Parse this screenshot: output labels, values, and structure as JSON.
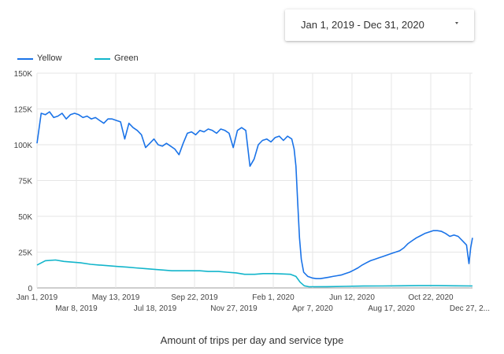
{
  "date_range": {
    "label": "Jan 1, 2019 - Dec 31, 2020",
    "dropdown_icon": "caret-down-icon"
  },
  "caption": "Amount of trips per day and service type",
  "chart_data": {
    "type": "line",
    "title": "",
    "xlabel": "",
    "ylabel": "",
    "x_start": "2019-01-01",
    "x_end": "2020-12-31",
    "ylim": [
      0,
      150000
    ],
    "y_ticks": [
      0,
      25000,
      50000,
      75000,
      100000,
      125000,
      150000
    ],
    "y_tick_labels": [
      "0",
      "25K",
      "50K",
      "75K",
      "100K",
      "125K",
      "150K"
    ],
    "x_ticks": [
      {
        "date": "2019-01-01",
        "label": "Jan 1, 2019"
      },
      {
        "date": "2019-03-08",
        "label": "Mar 8, 2019"
      },
      {
        "date": "2019-05-13",
        "label": "May 13, 2019"
      },
      {
        "date": "2019-07-18",
        "label": "Jul 18, 2019"
      },
      {
        "date": "2019-09-22",
        "label": "Sep 22, 2019"
      },
      {
        "date": "2019-11-27",
        "label": "Nov 27, 2019"
      },
      {
        "date": "2020-02-01",
        "label": "Feb 1, 2020"
      },
      {
        "date": "2020-04-07",
        "label": "Apr 7, 2020"
      },
      {
        "date": "2020-06-12",
        "label": "Jun 12, 2020"
      },
      {
        "date": "2020-08-17",
        "label": "Aug 17, 2020"
      },
      {
        "date": "2020-10-22",
        "label": "Oct 22, 2020"
      },
      {
        "date": "2020-12-27",
        "label": "Dec 27, 2..."
      }
    ],
    "grid": true,
    "legend_position": "top-left",
    "series": [
      {
        "name": "Yellow",
        "color": "#1a73e8",
        "points": [
          [
            "2019-01-01",
            101000
          ],
          [
            "2019-01-08",
            122000
          ],
          [
            "2019-01-15",
            121000
          ],
          [
            "2019-01-22",
            123000
          ],
          [
            "2019-01-29",
            119000
          ],
          [
            "2019-02-05",
            120000
          ],
          [
            "2019-02-12",
            122000
          ],
          [
            "2019-02-19",
            118000
          ],
          [
            "2019-02-26",
            121000
          ],
          [
            "2019-03-05",
            122000
          ],
          [
            "2019-03-12",
            121000
          ],
          [
            "2019-03-19",
            119000
          ],
          [
            "2019-03-26",
            120000
          ],
          [
            "2019-04-02",
            118000
          ],
          [
            "2019-04-09",
            119000
          ],
          [
            "2019-04-16",
            117000
          ],
          [
            "2019-04-23",
            115000
          ],
          [
            "2019-04-30",
            118000
          ],
          [
            "2019-05-07",
            118000
          ],
          [
            "2019-05-14",
            117000
          ],
          [
            "2019-05-21",
            116000
          ],
          [
            "2019-05-28",
            104000
          ],
          [
            "2019-06-04",
            115000
          ],
          [
            "2019-06-11",
            112000
          ],
          [
            "2019-06-18",
            110000
          ],
          [
            "2019-06-25",
            107000
          ],
          [
            "2019-07-02",
            98000
          ],
          [
            "2019-07-09",
            101000
          ],
          [
            "2019-07-16",
            104000
          ],
          [
            "2019-07-23",
            100000
          ],
          [
            "2019-07-30",
            99000
          ],
          [
            "2019-08-06",
            101000
          ],
          [
            "2019-08-13",
            99000
          ],
          [
            "2019-08-20",
            97000
          ],
          [
            "2019-08-27",
            93000
          ],
          [
            "2019-09-03",
            101000
          ],
          [
            "2019-09-10",
            108000
          ],
          [
            "2019-09-17",
            109000
          ],
          [
            "2019-09-24",
            107000
          ],
          [
            "2019-10-01",
            110000
          ],
          [
            "2019-10-08",
            109000
          ],
          [
            "2019-10-15",
            111000
          ],
          [
            "2019-10-22",
            110000
          ],
          [
            "2019-10-29",
            108000
          ],
          [
            "2019-11-05",
            111000
          ],
          [
            "2019-11-12",
            110000
          ],
          [
            "2019-11-19",
            108000
          ],
          [
            "2019-11-26",
            98000
          ],
          [
            "2019-12-03",
            110000
          ],
          [
            "2019-12-10",
            112000
          ],
          [
            "2019-12-17",
            110000
          ],
          [
            "2019-12-24",
            85000
          ],
          [
            "2019-12-31",
            90000
          ],
          [
            "2020-01-07",
            100000
          ],
          [
            "2020-01-14",
            103000
          ],
          [
            "2020-01-21",
            104000
          ],
          [
            "2020-01-28",
            102000
          ],
          [
            "2020-02-04",
            105000
          ],
          [
            "2020-02-11",
            106000
          ],
          [
            "2020-02-18",
            103000
          ],
          [
            "2020-02-25",
            106000
          ],
          [
            "2020-03-03",
            104000
          ],
          [
            "2020-03-07",
            97000
          ],
          [
            "2020-03-10",
            85000
          ],
          [
            "2020-03-13",
            60000
          ],
          [
            "2020-03-16",
            35000
          ],
          [
            "2020-03-19",
            20000
          ],
          [
            "2020-03-23",
            11000
          ],
          [
            "2020-03-30",
            8000
          ],
          [
            "2020-04-06",
            7000
          ],
          [
            "2020-04-13",
            6500
          ],
          [
            "2020-04-20",
            6500
          ],
          [
            "2020-04-27",
            7000
          ],
          [
            "2020-05-04",
            7500
          ],
          [
            "2020-05-11",
            8000
          ],
          [
            "2020-05-18",
            8500
          ],
          [
            "2020-05-25",
            9000
          ],
          [
            "2020-06-01",
            10000
          ],
          [
            "2020-06-08",
            11000
          ],
          [
            "2020-06-15",
            12500
          ],
          [
            "2020-06-22",
            14000
          ],
          [
            "2020-06-29",
            16000
          ],
          [
            "2020-07-06",
            17500
          ],
          [
            "2020-07-13",
            19000
          ],
          [
            "2020-07-20",
            20000
          ],
          [
            "2020-07-27",
            21000
          ],
          [
            "2020-08-03",
            22000
          ],
          [
            "2020-08-10",
            23000
          ],
          [
            "2020-08-17",
            24000
          ],
          [
            "2020-08-24",
            25000
          ],
          [
            "2020-08-31",
            26000
          ],
          [
            "2020-09-07",
            28000
          ],
          [
            "2020-09-14",
            31000
          ],
          [
            "2020-09-21",
            33000
          ],
          [
            "2020-09-28",
            35000
          ],
          [
            "2020-10-05",
            36500
          ],
          [
            "2020-10-12",
            38000
          ],
          [
            "2020-10-19",
            39000
          ],
          [
            "2020-10-26",
            40000
          ],
          [
            "2020-11-02",
            40000
          ],
          [
            "2020-11-09",
            39500
          ],
          [
            "2020-11-16",
            38000
          ],
          [
            "2020-11-23",
            36000
          ],
          [
            "2020-11-30",
            37000
          ],
          [
            "2020-12-07",
            36000
          ],
          [
            "2020-12-14",
            33000
          ],
          [
            "2020-12-21",
            30000
          ],
          [
            "2020-12-25",
            17000
          ],
          [
            "2020-12-28",
            28000
          ],
          [
            "2020-12-31",
            35000
          ]
        ]
      },
      {
        "name": "Green",
        "color": "#12b5cb",
        "points": [
          [
            "2019-01-01",
            16000
          ],
          [
            "2019-01-15",
            19000
          ],
          [
            "2019-02-01",
            19500
          ],
          [
            "2019-02-15",
            18500
          ],
          [
            "2019-03-01",
            18000
          ],
          [
            "2019-03-15",
            17500
          ],
          [
            "2019-04-01",
            16500
          ],
          [
            "2019-04-15",
            16000
          ],
          [
            "2019-05-01",
            15500
          ],
          [
            "2019-05-15",
            15000
          ],
          [
            "2019-06-01",
            14500
          ],
          [
            "2019-06-15",
            14000
          ],
          [
            "2019-07-01",
            13500
          ],
          [
            "2019-07-15",
            13000
          ],
          [
            "2019-08-01",
            12500
          ],
          [
            "2019-08-15",
            12000
          ],
          [
            "2019-09-01",
            12000
          ],
          [
            "2019-09-15",
            12000
          ],
          [
            "2019-10-01",
            12000
          ],
          [
            "2019-10-15",
            11500
          ],
          [
            "2019-11-01",
            11500
          ],
          [
            "2019-11-15",
            11000
          ],
          [
            "2019-12-01",
            10500
          ],
          [
            "2019-12-15",
            9500
          ],
          [
            "2020-01-01",
            9500
          ],
          [
            "2020-01-15",
            10000
          ],
          [
            "2020-02-01",
            10000
          ],
          [
            "2020-02-15",
            9800
          ],
          [
            "2020-03-01",
            9500
          ],
          [
            "2020-03-10",
            8000
          ],
          [
            "2020-03-17",
            4000
          ],
          [
            "2020-03-24",
            1500
          ],
          [
            "2020-04-01",
            800
          ],
          [
            "2020-05-01",
            900
          ],
          [
            "2020-06-01",
            1100
          ],
          [
            "2020-07-01",
            1300
          ],
          [
            "2020-08-01",
            1400
          ],
          [
            "2020-09-01",
            1500
          ],
          [
            "2020-10-01",
            1600
          ],
          [
            "2020-11-01",
            1600
          ],
          [
            "2020-12-01",
            1500
          ],
          [
            "2020-12-31",
            1400
          ]
        ]
      }
    ]
  }
}
